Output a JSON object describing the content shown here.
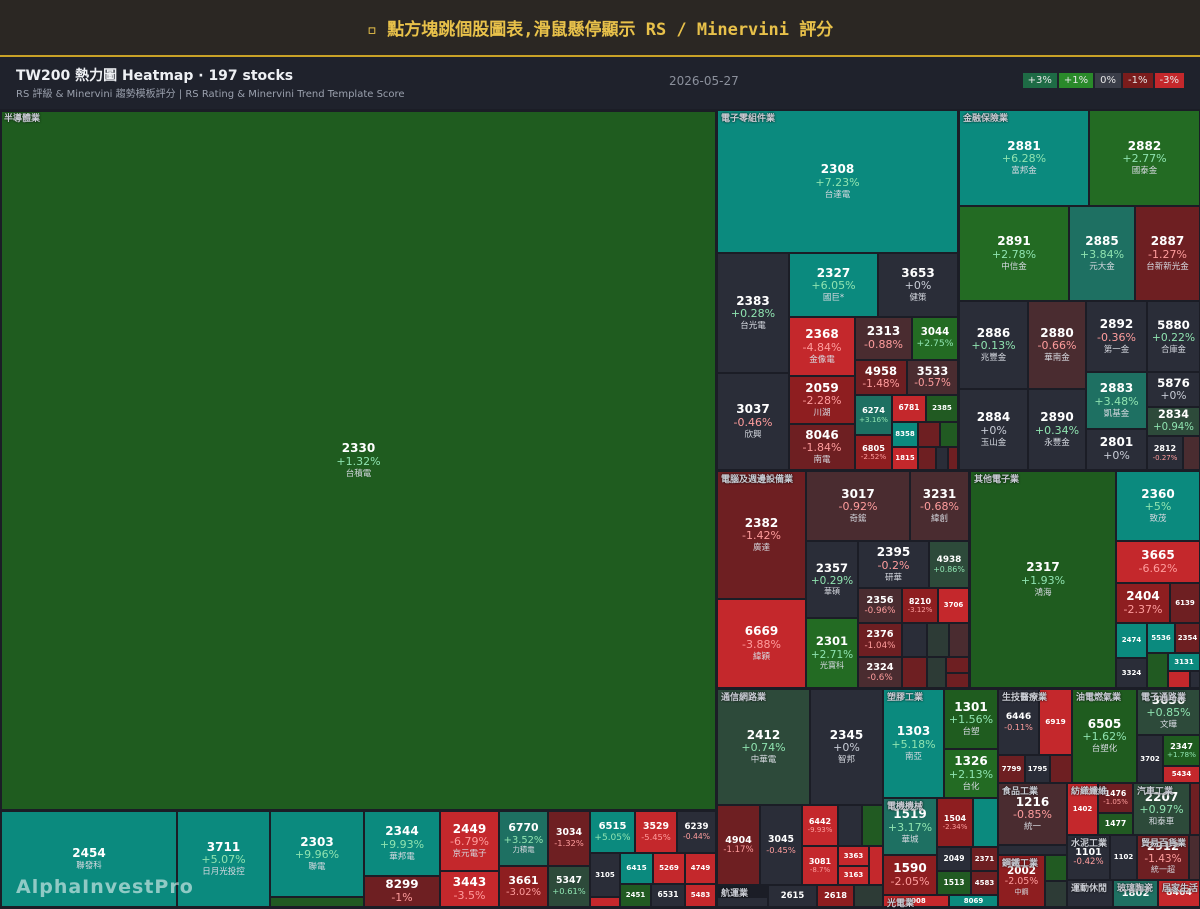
{
  "header": {
    "title": "▫ 點方塊跳個股圖表,滑鼠懸停顯示 RS / Minervini 評分"
  },
  "toolbar": {
    "title": "TW200 熱力圖 Heatmap · 197 stocks",
    "subtitle": "RS 評級 & Minervini 趨勢模板評分 | RS Rating & Minervini Trend Template Score",
    "date": "2026-05-27",
    "legend": [
      "+3%",
      "+1%",
      "0%",
      "-1%",
      "-3%"
    ]
  },
  "watermark": "AlphaInvestPro",
  "sectors": [
    {
      "name": "半導體業",
      "tiles": [
        {
          "code": "2330",
          "change": "+1.32%",
          "name": "台積電"
        },
        {
          "code": "2454",
          "name": "聯發科"
        },
        {
          "code": "3711",
          "change": "+5.07%",
          "name": "日月光投控"
        },
        {
          "code": "2303",
          "change": "+9.96%",
          "name": "聯電"
        },
        {
          "code": "2344",
          "change": "+9.93%",
          "name": "華邦電"
        },
        {
          "code": "2449",
          "change": "-6.79%",
          "name": "京元電子"
        },
        {
          "code": "6770",
          "change": "+3.52%",
          "name": "力積電"
        },
        {
          "code": "3034",
          "change": "-1.32%"
        },
        {
          "code": "6515",
          "change": "+5.05%"
        },
        {
          "code": "3529",
          "change": "-5.45%"
        },
        {
          "code": "6239",
          "change": "-0.44%"
        },
        {
          "code": "8299",
          "change": "-1%"
        },
        {
          "code": "3443",
          "change": "-3.5%"
        },
        {
          "code": "3661",
          "change": "-3.02%",
          "name": "世芯-KY"
        },
        {
          "code": "5347",
          "change": "+0.61%"
        },
        {
          "code": "3105"
        },
        {
          "code": "6415"
        },
        {
          "code": "5269"
        },
        {
          "code": "4749"
        },
        {
          "code": "2451"
        },
        {
          "code": "6531"
        },
        {
          "code": "5483"
        }
      ]
    },
    {
      "name": "電子零組件業",
      "tiles": [
        {
          "code": "2308",
          "change": "+7.23%",
          "name": "台達電"
        },
        {
          "code": "2383",
          "change": "+0.28%",
          "name": "台光電"
        },
        {
          "code": "3037",
          "change": "-0.46%",
          "name": "欣興"
        },
        {
          "code": "2327",
          "change": "+6.05%",
          "name": "國巨*"
        },
        {
          "code": "3653",
          "change": "+0%",
          "name": "健策"
        },
        {
          "code": "2368",
          "change": "-4.84%",
          "name": "金像電"
        },
        {
          "code": "2059",
          "change": "-2.28%",
          "name": "川湖"
        },
        {
          "code": "8046",
          "change": "-1.84%",
          "name": "南電"
        },
        {
          "code": "2313",
          "change": "-0.88%",
          "name": "華通"
        },
        {
          "code": "3044",
          "change": "+2.75%",
          "name": "健鼎"
        },
        {
          "code": "4958",
          "change": "-1.48%",
          "name": "臻鼎-KY"
        },
        {
          "code": "3533",
          "change": "-0.57%",
          "name": "嘉澤"
        },
        {
          "code": "6274",
          "change": "+3.16%"
        },
        {
          "code": "6781"
        },
        {
          "code": "2385"
        },
        {
          "code": "8358"
        },
        {
          "code": "6805",
          "change": "-2.52%"
        },
        {
          "code": "1815"
        }
      ]
    },
    {
      "name": "金融保險業",
      "tiles": [
        {
          "code": "2881",
          "change": "+6.28%",
          "name": "富邦金"
        },
        {
          "code": "2882",
          "change": "+2.77%",
          "name": "國泰金"
        },
        {
          "code": "2891",
          "change": "+2.78%",
          "name": "中信金"
        },
        {
          "code": "2885",
          "change": "+3.84%",
          "name": "元大金"
        },
        {
          "code": "2887",
          "change": "-1.27%",
          "name": "台新新光金"
        },
        {
          "code": "2886",
          "change": "+0.13%",
          "name": "兆豐金"
        },
        {
          "code": "2880",
          "change": "-0.66%",
          "name": "華南金"
        },
        {
          "code": "2892",
          "change": "-0.36%",
          "name": "第一金"
        },
        {
          "code": "5880",
          "change": "+0.22%",
          "name": "合庫金"
        },
        {
          "code": "5876",
          "change": "+0%",
          "name": "上海商銀"
        },
        {
          "code": "2883",
          "change": "+3.48%",
          "name": "凱基金"
        },
        {
          "code": "2834",
          "change": "+0.94%"
        },
        {
          "code": "2884",
          "change": "+0%",
          "name": "玉山金"
        },
        {
          "code": "2890",
          "change": "+0.34%",
          "name": "永豐金"
        },
        {
          "code": "2801",
          "change": "+0%",
          "name": "彰銀"
        },
        {
          "code": "2812",
          "change": "-0.27%"
        }
      ]
    },
    {
      "name": "電腦及週邊設備業",
      "tiles": [
        {
          "code": "2382",
          "change": "-1.42%",
          "name": "廣達"
        },
        {
          "code": "6669",
          "change": "-3.88%",
          "name": "緯穎"
        },
        {
          "code": "3017",
          "change": "-0.92%",
          "name": "奇鋐"
        },
        {
          "code": "3231",
          "change": "-0.68%",
          "name": "緯創"
        },
        {
          "code": "2357",
          "change": "+0.29%",
          "name": "華碩"
        },
        {
          "code": "2301",
          "change": "+2.71%",
          "name": "光寶科"
        },
        {
          "code": "2395",
          "change": "-0.2%",
          "name": "研華"
        },
        {
          "code": "4938",
          "change": "+0.86%"
        },
        {
          "code": "2356",
          "change": "-0.96%"
        },
        {
          "code": "8210",
          "change": "-3.12%"
        },
        {
          "code": "3706"
        },
        {
          "code": "2376",
          "change": "-1.04%"
        },
        {
          "code": "2324",
          "change": "-0.6%"
        }
      ]
    },
    {
      "name": "其他電子業",
      "tiles": [
        {
          "code": "2317",
          "change": "+1.93%",
          "name": "鴻海"
        },
        {
          "code": "2360",
          "change": "+5%",
          "name": "致茂"
        },
        {
          "code": "3665",
          "change": "-6.62%",
          "name": "貿聯-KY"
        },
        {
          "code": "2404",
          "change": "-2.37%",
          "name": "漢唐"
        },
        {
          "code": "6139"
        },
        {
          "code": "2474"
        },
        {
          "code": "5536"
        },
        {
          "code": "2354"
        },
        {
          "code": "3324"
        },
        {
          "code": "3131"
        }
      ]
    },
    {
      "name": "通信網路業",
      "tiles": [
        {
          "code": "2412",
          "change": "+0.74%",
          "name": "中華電"
        },
        {
          "code": "2345",
          "change": "+0%",
          "name": "智邦"
        },
        {
          "code": "4904",
          "change": "-1.17%"
        },
        {
          "code": "3045",
          "change": "-0.45%"
        },
        {
          "code": "6442",
          "change": "-9.93%"
        },
        {
          "code": "3081",
          "change": "-8.7%"
        },
        {
          "code": "3363"
        },
        {
          "code": "3163"
        }
      ]
    },
    {
      "name": "航運業",
      "tiles": [
        {
          "code": "2615"
        },
        {
          "code": "2618"
        }
      ]
    },
    {
      "name": "塑膠工業",
      "tiles": [
        {
          "code": "1303",
          "change": "+5.18%",
          "name": "南亞"
        },
        {
          "code": "1301",
          "change": "+1.56%",
          "name": "台塑"
        },
        {
          "code": "1326",
          "change": "+2.13%",
          "name": "台化"
        }
      ]
    },
    {
      "name": "電機機械",
      "tiles": [
        {
          "code": "1519",
          "change": "+3.17%",
          "name": "華城"
        },
        {
          "code": "1504",
          "change": "-2.34%"
        },
        {
          "code": "1590",
          "change": "-2.05%",
          "name": "亞德客-KY"
        },
        {
          "code": "2049"
        },
        {
          "code": "2371"
        },
        {
          "code": "1513"
        },
        {
          "code": "4583"
        }
      ]
    },
    {
      "name": "光電業",
      "tiles": [
        {
          "code": "3008"
        },
        {
          "code": "8069"
        }
      ]
    },
    {
      "name": "生技醫療業",
      "tiles": [
        {
          "code": "6446",
          "change": "-0.11%"
        },
        {
          "code": "6919"
        },
        {
          "code": "7799"
        },
        {
          "code": "1795"
        }
      ]
    },
    {
      "name": "食品工業",
      "tiles": [
        {
          "code": "1216",
          "change": "-0.85%",
          "name": "統一"
        }
      ]
    },
    {
      "name": "鋼鐵工業",
      "tiles": [
        {
          "code": "2002",
          "change": "-2.05%",
          "name": "中鋼"
        }
      ]
    },
    {
      "name": "油電燃氣業",
      "tiles": [
        {
          "code": "6505",
          "change": "+1.62%",
          "name": "台塑化"
        }
      ]
    },
    {
      "name": "紡織纖維",
      "tiles": [
        {
          "code": "1402"
        },
        {
          "code": "1476",
          "change": "-1.05%"
        },
        {
          "code": "1477"
        }
      ]
    },
    {
      "name": "水泥工業",
      "tiles": [
        {
          "code": "1101",
          "change": "-0.42%"
        },
        {
          "code": "1102"
        }
      ]
    },
    {
      "name": "運動休閒",
      "tiles": []
    },
    {
      "name": "玻璃陶瓷",
      "tiles": [
        {
          "code": "1802"
        }
      ]
    },
    {
      "name": "居家生活",
      "tiles": [
        {
          "code": "8464"
        }
      ]
    },
    {
      "name": "電子通路業",
      "tiles": [
        {
          "code": "3036",
          "change": "+0.85%",
          "name": "文曄"
        },
        {
          "code": "3702"
        },
        {
          "code": "2347",
          "change": "+1.78%"
        },
        {
          "code": "5434"
        }
      ]
    },
    {
      "name": "汽車工業",
      "tiles": [
        {
          "code": "2207",
          "change": "+0.97%",
          "name": "和泰車"
        }
      ]
    },
    {
      "name": "貿易百貨業",
      "tiles": [
        {
          "code": "2912",
          "change": "-1.43%",
          "name": "統一超"
        }
      ]
    }
  ]
}
